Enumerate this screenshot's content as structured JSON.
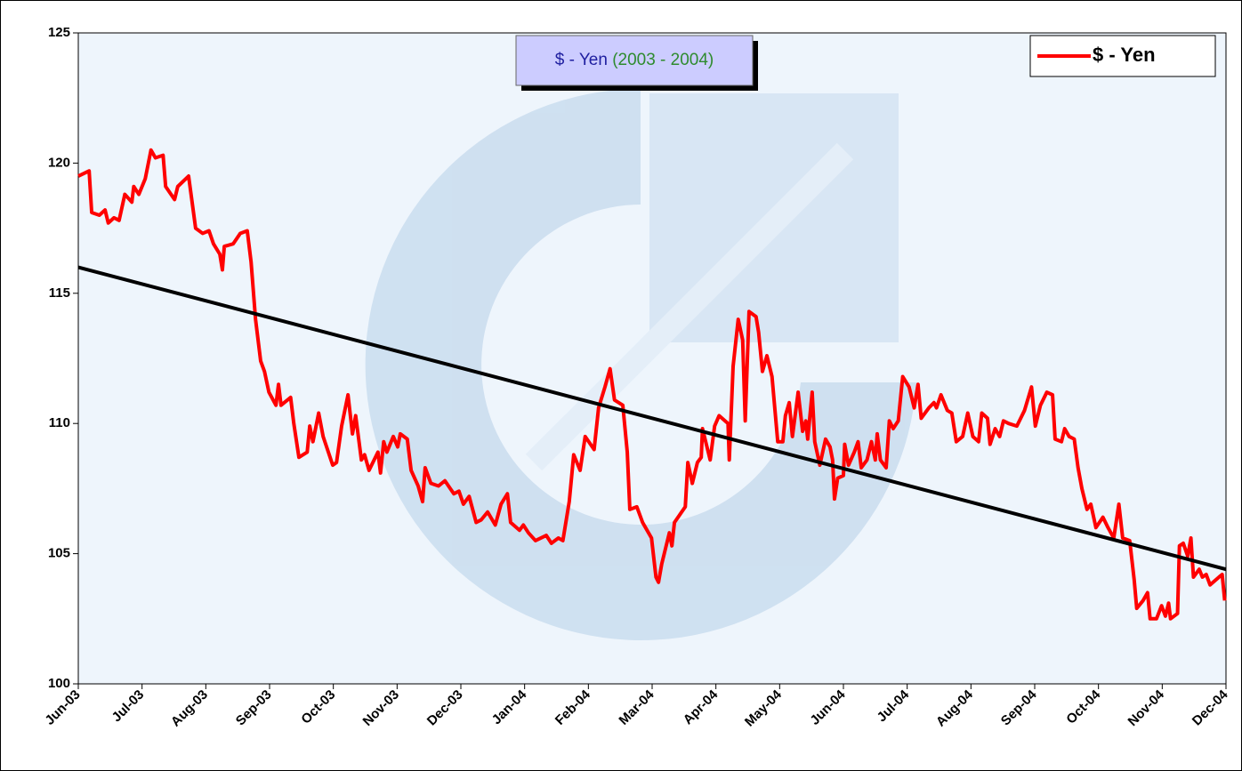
{
  "chart_data": {
    "type": "line",
    "title": "$ - Yen",
    "subtitle": "(2003 - 2004)",
    "xlim": [
      0,
      18
    ],
    "xticks": [
      {
        "value": 0,
        "label": "Jun-03"
      },
      {
        "value": 1,
        "label": "Jul-03"
      },
      {
        "value": 2,
        "label": "Aug-03"
      },
      {
        "value": 3,
        "label": "Sep-03"
      },
      {
        "value": 4,
        "label": "Oct-03"
      },
      {
        "value": 5,
        "label": "Nov-03"
      },
      {
        "value": 6,
        "label": "Dec-03"
      },
      {
        "value": 7,
        "label": "Jan-04"
      },
      {
        "value": 8,
        "label": "Feb-04"
      },
      {
        "value": 9,
        "label": "Mar-04"
      },
      {
        "value": 10,
        "label": "Apr-04"
      },
      {
        "value": 11,
        "label": "May-04"
      },
      {
        "value": 12,
        "label": "Jun-04"
      },
      {
        "value": 13,
        "label": "Jul-04"
      },
      {
        "value": 14,
        "label": "Aug-04"
      },
      {
        "value": 15,
        "label": "Sep-04"
      },
      {
        "value": 16,
        "label": "Oct-04"
      },
      {
        "value": 17,
        "label": "Nov-04"
      },
      {
        "value": 18,
        "label": "Dec-04"
      }
    ],
    "ylim": [
      100,
      125
    ],
    "yticks": [
      100,
      105,
      110,
      115,
      120,
      125
    ],
    "grid": false,
    "legend": "top-right",
    "series": [
      {
        "name": "$ - Yen",
        "color": "#ff0000",
        "x": [
          0,
          0.17,
          0.21,
          0.33,
          0.42,
          0.47,
          0.56,
          0.64,
          0.73,
          0.84,
          0.87,
          0.95,
          1.05,
          1.14,
          1.21,
          1.33,
          1.37,
          1.51,
          1.56,
          1.73,
          1.84,
          1.95,
          2.05,
          2.12,
          2.22,
          2.26,
          2.29,
          2.43,
          2.54,
          2.65,
          2.71,
          2.78,
          2.86,
          2.92,
          2.99,
          3.1,
          3.14,
          3.18,
          3.33,
          3.38,
          3.46,
          3.59,
          3.63,
          3.68,
          3.77,
          3.84,
          3.99,
          4.05,
          4.13,
          4.23,
          4.3,
          4.35,
          4.44,
          4.49,
          4.56,
          4.7,
          4.74,
          4.79,
          4.84,
          4.94,
          5.01,
          5.05,
          5.16,
          5.22,
          5.33,
          5.4,
          5.44,
          5.53,
          5.65,
          5.75,
          5.89,
          5.97,
          6.04,
          6.13,
          6.24,
          6.32,
          6.42,
          6.54,
          6.63,
          6.73,
          6.78,
          6.92,
          6.98,
          7.06,
          7.17,
          7.34,
          7.42,
          7.53,
          7.6,
          7.7,
          7.77,
          7.87,
          7.95,
          8.09,
          8.16,
          8.26,
          8.34,
          8.41,
          8.54,
          8.61,
          8.65,
          8.76,
          8.85,
          8.99,
          9.06,
          9.1,
          9.15,
          9.27,
          9.31,
          9.35,
          9.52,
          9.56,
          9.63,
          9.71,
          9.77,
          9.79,
          9.91,
          9.98,
          10.05,
          10.19,
          10.21,
          10.27,
          10.35,
          10.42,
          10.46,
          10.52,
          10.63,
          10.67,
          10.73,
          10.8,
          10.88,
          10.97,
          11.05,
          11.09,
          11.15,
          11.2,
          11.29,
          11.36,
          11.41,
          11.44,
          11.51,
          11.55,
          11.63,
          11.72,
          11.79,
          11.83,
          11.86,
          11.91,
          12.0,
          12.02,
          12.08,
          12.17,
          12.23,
          12.28,
          12.37,
          12.44,
          12.5,
          12.53,
          12.58,
          12.67,
          12.72,
          12.78,
          12.86,
          12.93,
          13.03,
          13.11,
          13.17,
          13.22,
          13.34,
          13.42,
          13.46,
          13.53,
          13.63,
          13.7,
          13.77,
          13.87,
          13.95,
          14.03,
          14.12,
          14.17,
          14.26,
          14.3,
          14.38,
          14.45,
          14.51,
          14.59,
          14.72,
          14.84,
          14.95,
          15.01,
          15.09,
          15.19,
          15.28,
          15.32,
          15.42,
          15.47,
          15.54,
          15.62,
          15.68,
          15.74,
          15.82,
          15.88,
          15.96,
          16.07,
          16.15,
          16.24,
          16.32,
          16.38,
          16.49,
          16.56,
          16.6,
          16.7,
          16.77,
          16.81,
          16.91,
          16.99,
          17.05,
          17.1,
          17.13,
          17.24,
          17.27,
          17.33,
          17.4,
          17.45,
          17.49,
          17.58,
          17.63,
          17.69,
          17.75,
          17.89,
          17.94,
          17.98
        ],
        "values": [
          119.5,
          119.7,
          118.1,
          118.0,
          118.2,
          117.7,
          117.9,
          117.8,
          118.8,
          118.5,
          119.1,
          118.8,
          119.4,
          120.5,
          120.2,
          120.3,
          119.1,
          118.6,
          119.1,
          119.5,
          117.5,
          117.3,
          117.4,
          116.9,
          116.5,
          115.9,
          116.8,
          116.9,
          117.3,
          117.4,
          116.2,
          114.0,
          112.4,
          112.0,
          111.2,
          110.7,
          111.5,
          110.7,
          111.0,
          110.0,
          108.7,
          108.9,
          109.9,
          109.3,
          110.4,
          109.5,
          108.4,
          108.5,
          109.9,
          111.1,
          109.6,
          110.3,
          108.6,
          108.8,
          108.2,
          108.9,
          108.1,
          109.3,
          108.9,
          109.5,
          109.1,
          109.6,
          109.4,
          108.2,
          107.6,
          107.0,
          108.3,
          107.7,
          107.6,
          107.8,
          107.3,
          107.4,
          106.9,
          107.2,
          106.2,
          106.3,
          106.6,
          106.1,
          106.9,
          107.3,
          106.2,
          105.9,
          106.1,
          105.8,
          105.5,
          105.7,
          105.4,
          105.6,
          105.5,
          107.0,
          108.8,
          108.2,
          109.5,
          109.0,
          110.6,
          111.4,
          112.1,
          110.9,
          110.7,
          108.9,
          106.7,
          106.8,
          106.2,
          105.6,
          104.1,
          103.9,
          104.6,
          105.8,
          105.3,
          106.2,
          106.8,
          108.5,
          107.7,
          108.5,
          108.7,
          109.8,
          108.6,
          109.9,
          110.3,
          110.0,
          108.6,
          112.2,
          114.0,
          113.2,
          110.1,
          114.3,
          114.1,
          113.5,
          112.0,
          112.6,
          111.8,
          109.3,
          109.3,
          110.3,
          110.8,
          109.5,
          111.2,
          109.7,
          110.1,
          109.4,
          111.2,
          109.3,
          108.4,
          109.4,
          109.1,
          108.6,
          107.1,
          107.9,
          108.0,
          109.2,
          108.4,
          108.9,
          109.3,
          108.3,
          108.6,
          109.3,
          108.6,
          109.6,
          108.6,
          108.3,
          110.1,
          109.8,
          110.1,
          111.8,
          111.4,
          110.6,
          111.5,
          110.2,
          110.6,
          110.8,
          110.6,
          111.1,
          110.5,
          110.4,
          109.3,
          109.5,
          110.4,
          109.5,
          109.3,
          110.4,
          110.2,
          109.2,
          109.8,
          109.5,
          110.1,
          110.0,
          109.9,
          110.5,
          111.4,
          109.9,
          110.7,
          111.2,
          111.1,
          109.4,
          109.3,
          109.8,
          109.5,
          109.4,
          108.3,
          107.5,
          106.7,
          106.9,
          106.0,
          106.4,
          106.0,
          105.6,
          106.9,
          105.6,
          105.5,
          104.0,
          102.9,
          103.2,
          103.5,
          102.5,
          102.5,
          103.0,
          102.6,
          103.1,
          102.5,
          102.7,
          105.3,
          105.4,
          104.9,
          105.6,
          104.1,
          104.4,
          104.1,
          104.2,
          103.8,
          104.1,
          104.2,
          103.2
        ]
      }
    ],
    "trendline": {
      "x": [
        0,
        18
      ],
      "values": [
        116,
        104.4
      ],
      "color": "#000000"
    }
  }
}
